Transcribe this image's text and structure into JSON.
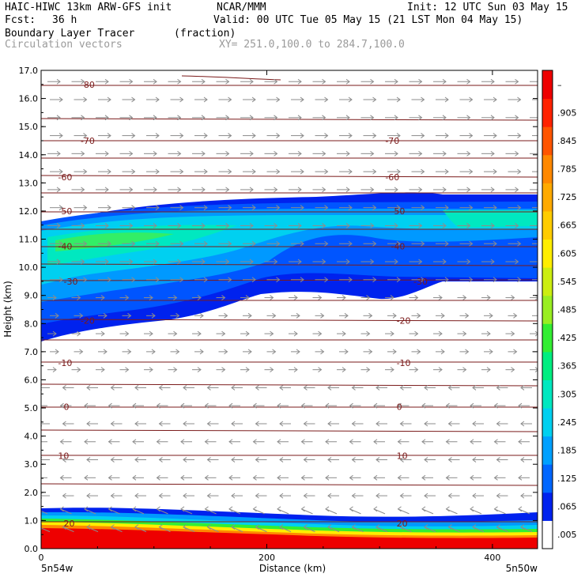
{
  "header": {
    "model_line": "HAIC-HIWC 13km ARW-GFS init",
    "org": "NCAR/MMM",
    "init": "Init: 12 UTC Sun 03 May 15",
    "fcst_label": "Fcst:",
    "fcst_value": "36 h",
    "valid": "Valid: 00 UTC Tue 05 May 15 (21 LST Mon 04 May 15)",
    "field": "Boundary Layer Tracer",
    "units": "(fraction)",
    "vectors": "Circulation vectors",
    "xy": "XY= 251.0,100.0 to 284.7,100.0"
  },
  "colors": {
    "contour": "#7a1a1a",
    "vector": "#8c8c8c",
    "colorbar": [
      "#ffffff",
      "#0022ee",
      "#0066ff",
      "#00a0ff",
      "#00d0f0",
      "#00e8c0",
      "#00ee80",
      "#33ee33",
      "#99ee22",
      "#ccee11",
      "#ffee00",
      "#ffcc00",
      "#ffaa00",
      "#ff8800",
      "#ff5500",
      "#ff2200",
      "#ee0000"
    ]
  },
  "chart_data": {
    "type": "heatmap",
    "xlabel": "Distance (km)",
    "ylabel": "Height (km)",
    "xlim": [
      0,
      440
    ],
    "ylim": [
      0,
      17
    ],
    "x_ticks": [
      "0",
      "200",
      "400"
    ],
    "y_ticks": [
      "0.0",
      "1.0",
      "2.0",
      "3.0",
      "4.0",
      "5.0",
      "6.0",
      "7.0",
      "8.0",
      "9.0",
      "10.0",
      "11.0",
      "12.0",
      "13.0",
      "14.0",
      "15.0",
      "16.0",
      "17.0"
    ],
    "x_end_labels": {
      "left": "5n54w",
      "right": "5n50w"
    },
    "colorbar_labels": [
      ".005",
      ".065",
      ".125",
      ".185",
      ".245",
      ".305",
      ".365",
      ".425",
      ".485",
      ".545",
      ".605",
      ".665",
      ".725",
      ".785",
      ".845",
      ".905",
      "–"
    ],
    "contour_labels": [
      {
        "text": "-80",
        "x": 35,
        "y": 16.5
      },
      {
        "text": "-70",
        "x": 35,
        "y": 14.5
      },
      {
        "text": "-70",
        "x": 305,
        "y": 14.5
      },
      {
        "text": "-60",
        "x": 15,
        "y": 13.2
      },
      {
        "text": "-60",
        "x": 305,
        "y": 13.2
      },
      {
        "text": "-50",
        "x": 15,
        "y": 12.0
      },
      {
        "text": "-50",
        "x": 310,
        "y": 12.0
      },
      {
        "text": "-40",
        "x": 15,
        "y": 10.75
      },
      {
        "text": "-40",
        "x": 310,
        "y": 10.75
      },
      {
        "text": "-30",
        "x": 20,
        "y": 9.5
      },
      {
        "text": "-30",
        "x": 330,
        "y": 9.5
      },
      {
        "text": "-20",
        "x": 35,
        "y": 8.1
      },
      {
        "text": "-20",
        "x": 315,
        "y": 8.1
      },
      {
        "text": "-10",
        "x": 15,
        "y": 6.6
      },
      {
        "text": "-10",
        "x": 315,
        "y": 6.6
      },
      {
        "text": "0",
        "x": 20,
        "y": 5.05
      },
      {
        "text": "0",
        "x": 315,
        "y": 5.05
      },
      {
        "text": "10",
        "x": 15,
        "y": 3.3
      },
      {
        "text": "10",
        "x": 315,
        "y": 3.3
      },
      {
        "text": "20",
        "x": 20,
        "y": 0.9
      },
      {
        "text": "20",
        "x": 315,
        "y": 0.9
      }
    ]
  }
}
